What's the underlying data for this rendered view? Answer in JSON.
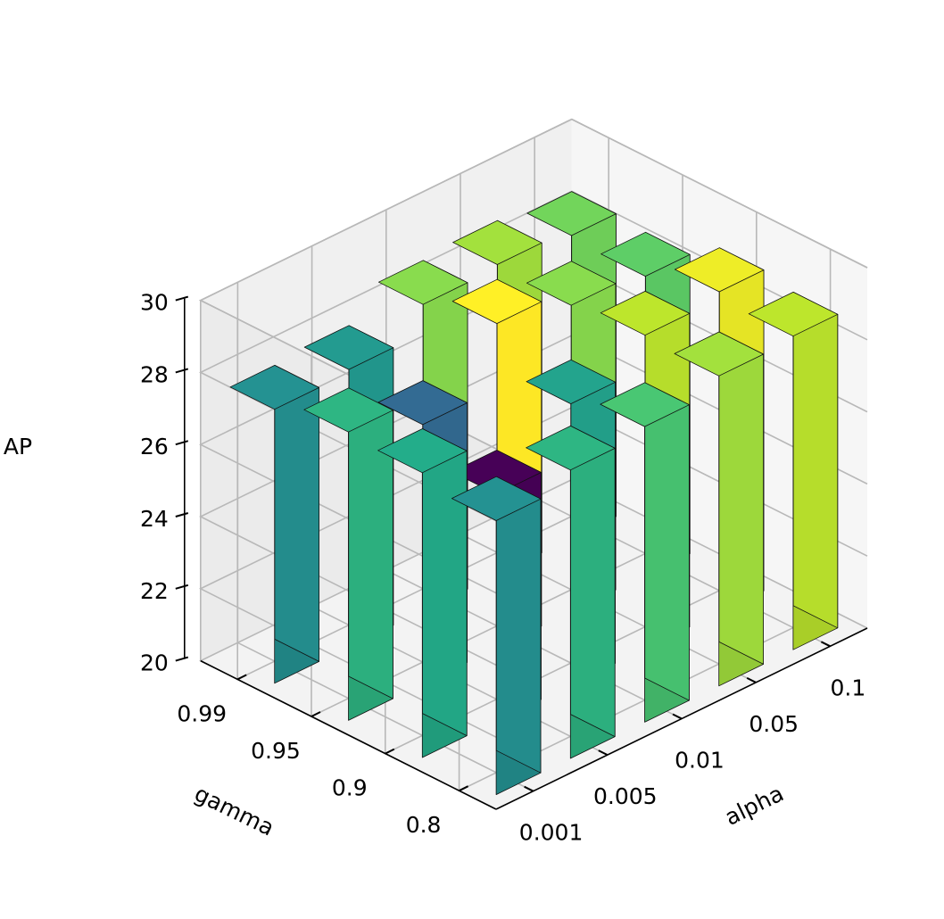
{
  "chart_data": {
    "type": "bar3d",
    "x_axis": {
      "label": "alpha",
      "categories": [
        "0.001",
        "0.005",
        "0.01",
        "0.05",
        "0.1"
      ]
    },
    "y_axis": {
      "label": "gamma",
      "categories": [
        "0.8",
        "0.9",
        "0.95",
        "0.99"
      ]
    },
    "z_axis": {
      "label": "AP",
      "ticks": [
        "20",
        "22",
        "24",
        "26",
        "28",
        "30"
      ],
      "zlim": [
        20,
        30
      ]
    },
    "colormap": "viridis",
    "color_range": [
      26.3,
      29.0
    ],
    "grid": true,
    "values": [
      [
        27.6,
        28.0,
        28.2,
        28.6,
        28.7
      ],
      [
        27.9,
        26.3,
        27.8,
        28.7,
        28.9
      ],
      [
        28.0,
        27.2,
        29.0,
        28.5,
        28.3
      ],
      [
        27.6,
        27.7,
        28.5,
        28.6,
        28.4
      ]
    ]
  }
}
